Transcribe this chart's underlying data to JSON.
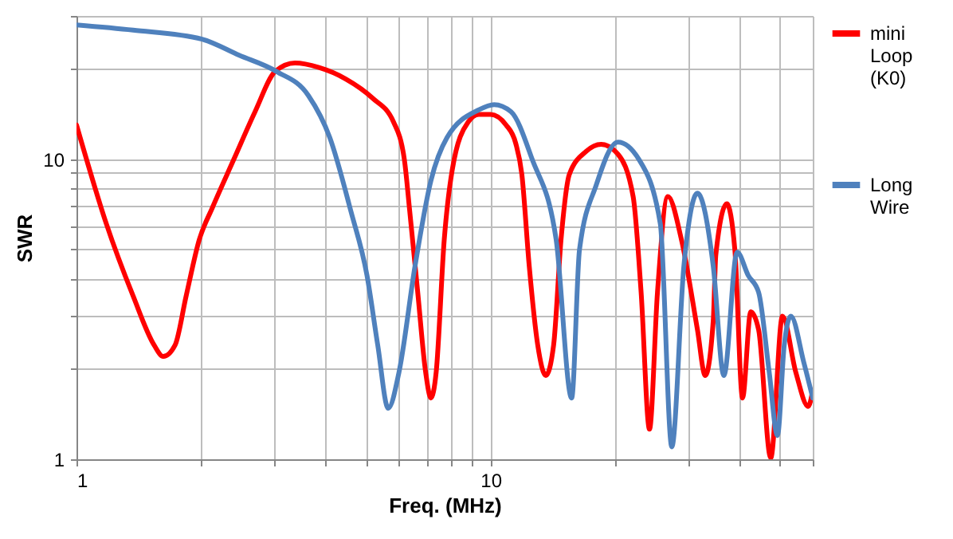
{
  "chart_data": {
    "type": "line",
    "xlabel": "Freq.  (MHz)",
    "ylabel": "SWR",
    "log": "xy",
    "grid": true,
    "legend": "right",
    "marker": "none",
    "line_style": "solid",
    "xlim": [
      1,
      60
    ],
    "ylim": [
      1,
      30
    ],
    "xticks": [
      1,
      {
        "value": 2,
        "label": null
      },
      {
        "value": 3,
        "label": null
      },
      {
        "value": 4,
        "label": null
      },
      {
        "value": 5,
        "label": null
      },
      {
        "value": 6,
        "label": null
      },
      {
        "value": 7,
        "label": null
      },
      {
        "value": 8,
        "label": null
      },
      {
        "value": 9,
        "label": null
      },
      10,
      {
        "value": 20,
        "label": null
      },
      {
        "value": 30,
        "label": null
      },
      {
        "value": 40,
        "label": null
      },
      {
        "value": 50,
        "label": null
      },
      {
        "value": 60,
        "label": null
      }
    ],
    "yticks": [
      1,
      {
        "value": 2,
        "label": null
      },
      {
        "value": 3,
        "label": null
      },
      {
        "value": 4,
        "label": null
      },
      {
        "value": 5,
        "label": null
      },
      {
        "value": 6,
        "label": null
      },
      {
        "value": 7,
        "label": null
      },
      {
        "value": 8,
        "label": null
      },
      {
        "value": 9,
        "label": null
      },
      10,
      {
        "value": 20,
        "label": null
      },
      {
        "value": 30,
        "label": null
      }
    ],
    "series": [
      {
        "name": "mini Loop (K0)",
        "color": "#ff0000",
        "x": [
          1,
          1.18,
          1.37,
          1.54,
          1.62,
          1.73,
          1.84,
          1.98,
          2.13,
          2.4,
          2.7,
          3.02,
          3.37,
          3.85,
          4.47,
          5.18,
          5.83,
          6.19,
          6.38,
          6.67,
          6.97,
          7.18,
          7.39,
          7.73,
          8.08,
          8.83,
          9.37,
          10,
          10.9,
          11.5,
          11.9,
          12.4,
          13,
          13.6,
          14.2,
          14.8,
          15.5,
          17,
          18.5,
          20.3,
          22.1,
          23.1,
          24.2,
          25.3,
          26.8,
          28.9,
          31.6,
          33,
          34.5,
          35,
          37.2,
          38.9,
          40.6,
          42.5,
          44.4,
          47.5,
          50.7,
          54.6,
          58.5,
          60
        ],
        "values": [
          13,
          6.1,
          3.5,
          2.4,
          2.2,
          2.4,
          3.5,
          5.4,
          6.9,
          10,
          14.4,
          19.6,
          20.9,
          20.2,
          18.5,
          16,
          13.3,
          10,
          6.7,
          3.6,
          1.95,
          1.6,
          1.95,
          5.4,
          9.2,
          13.3,
          14.1,
          14.1,
          13,
          11.3,
          8.9,
          4.4,
          2.4,
          1.9,
          2.4,
          5.4,
          8.9,
          10.6,
          11.2,
          10.4,
          7.5,
          3.6,
          1.26,
          3.6,
          7.5,
          5.4,
          2.7,
          1.9,
          2.9,
          4.8,
          7.1,
          5,
          1.6,
          3.1,
          2.7,
          1.01,
          3,
          1.95,
          1.5,
          1.7
        ]
      },
      {
        "name": "Long Wire",
        "color": "#4f81bd",
        "x": [
          1,
          1.37,
          2.01,
          2.47,
          3.04,
          3.63,
          4.09,
          4.6,
          5.03,
          5.34,
          5.66,
          6.01,
          6.57,
          7.18,
          7.85,
          9.37,
          10.2,
          11.2,
          12.6,
          14.4,
          15.7,
          16.4,
          18,
          20.3,
          22.8,
          25.7,
          27.4,
          29.3,
          31.6,
          34.5,
          36.6,
          39.4,
          41.9,
          44.4,
          47.1,
          49.3,
          51.2,
          53.1,
          57.1,
          60
        ],
        "values": [
          28,
          26.9,
          25.1,
          22.2,
          19.6,
          16.3,
          11.8,
          6.7,
          4.1,
          2.4,
          1.48,
          1.95,
          4.4,
          8.5,
          11.8,
          14.6,
          15.2,
          14.4,
          10,
          5.4,
          1.6,
          5,
          8.2,
          11.4,
          10,
          6.1,
          1.1,
          4.4,
          7.7,
          4.4,
          1.9,
          4.9,
          4.1,
          3.6,
          1.95,
          1.2,
          2.4,
          3,
          2.1,
          1.6
        ]
      }
    ]
  }
}
